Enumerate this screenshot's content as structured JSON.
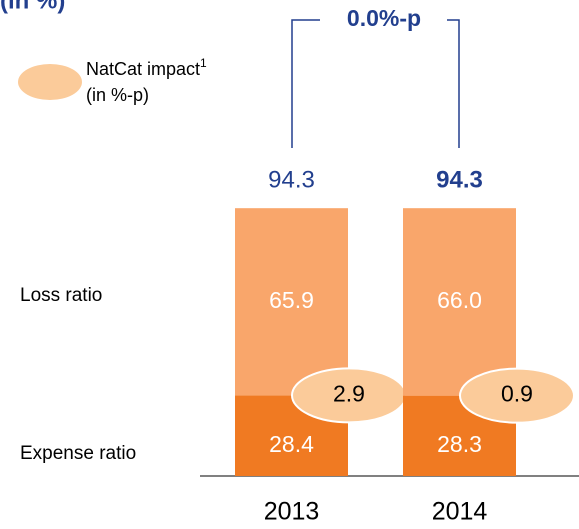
{
  "chart_data": {
    "type": "stacked-bar",
    "subtitle": "(in %)",
    "categories": [
      "2013",
      "2014"
    ],
    "series": [
      {
        "name": "Expense ratio",
        "color": "#f07a22",
        "values": [
          28.4,
          28.3
        ]
      },
      {
        "name": "Loss ratio",
        "color": "#f9a66b",
        "values": [
          65.9,
          66.0
        ],
        "value_labels": [
          "65.9",
          "66.0"
        ]
      }
    ],
    "totals": {
      "values": [
        94.3,
        94.3
      ],
      "color": "#223f8e"
    },
    "natcat": {
      "name": "NatCat impact",
      "footnote": "1",
      "unit": "(in %-p)",
      "color": "#fbcb9a",
      "values": [
        2.9,
        0.9
      ]
    },
    "annotation": "0.0%-p"
  }
}
